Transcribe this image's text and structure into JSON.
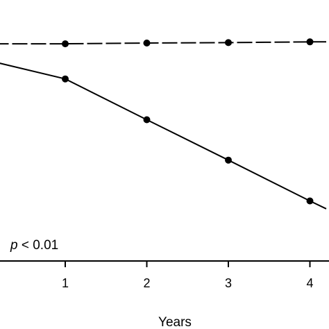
{
  "chart_data": {
    "type": "line",
    "xlabel": "Years",
    "ylabel": "",
    "xlim": [
      -0.8,
      4.2
    ],
    "ylim": [
      0,
      100
    ],
    "x_ticks": [
      "1",
      "2",
      "3",
      "4"
    ],
    "grid": false,
    "legend": "none",
    "series": [
      {
        "style": "dashed",
        "color": "#000000",
        "x": [
          -0.8,
          1,
          2,
          3,
          4,
          4.2
        ],
        "y": [
          91.5,
          91.5,
          91.8,
          92.0,
          92.3,
          92.3
        ]
      },
      {
        "style": "solid",
        "color": "#000000",
        "x": [
          -0.8,
          1,
          2,
          3,
          4,
          4.2
        ],
        "y": [
          91.5,
          76.7,
          59.5,
          42.5,
          25.3,
          22.0
        ]
      }
    ],
    "annotation": {
      "italic": "p",
      "rest": " < 0.01"
    }
  }
}
